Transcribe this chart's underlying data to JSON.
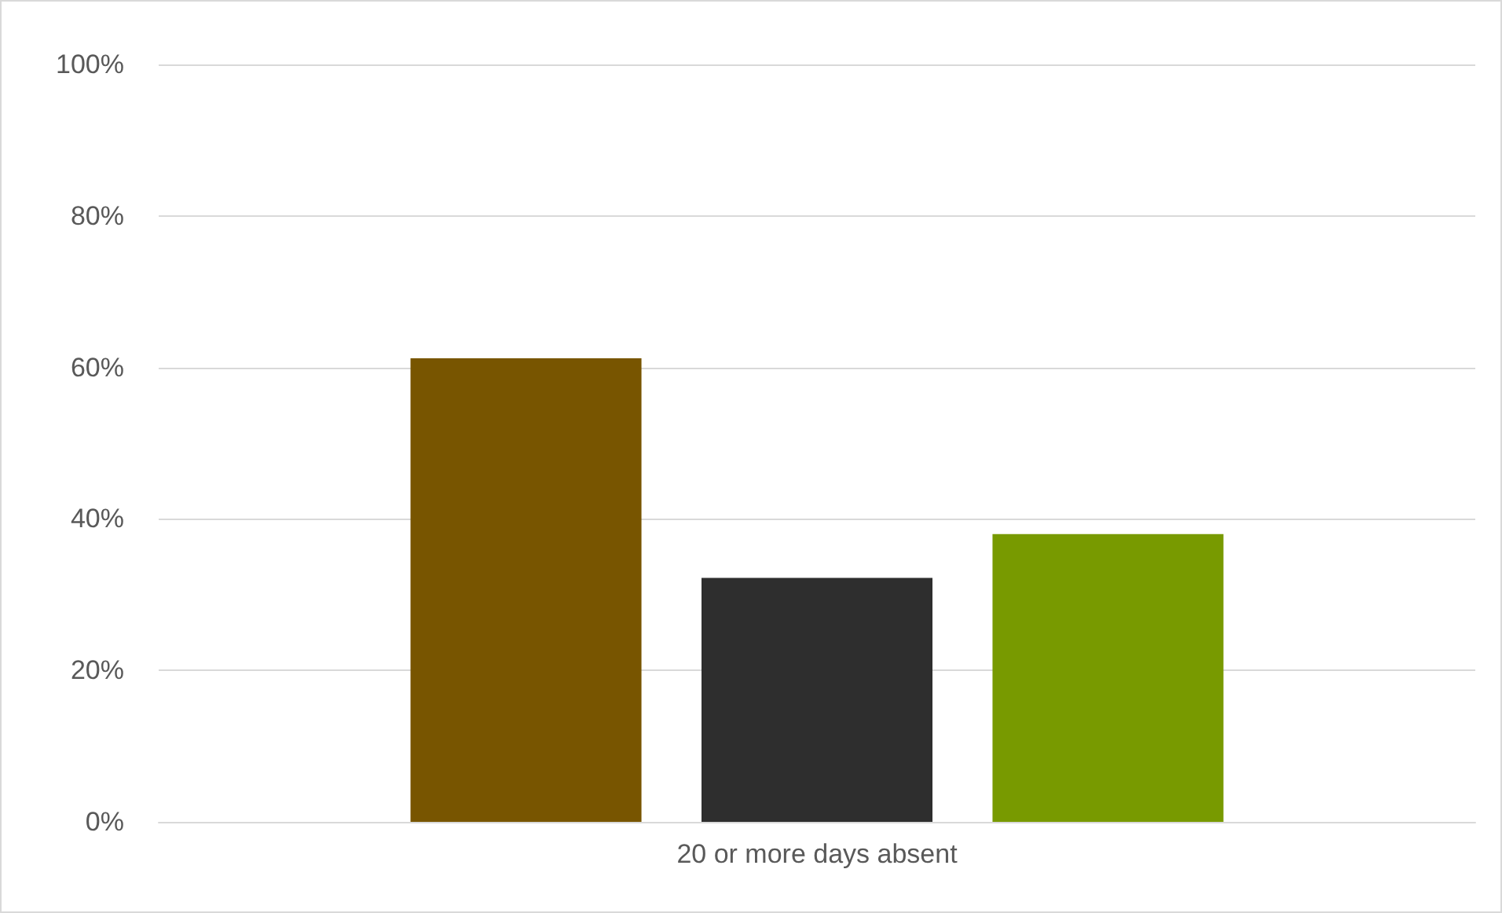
{
  "chart_data": {
    "type": "bar",
    "categories": [
      "20 or more days absent"
    ],
    "series": [
      {
        "color": "#785500",
        "values": [
          61.2
        ]
      },
      {
        "color": "#2e2e2e",
        "values": [
          32.2
        ]
      },
      {
        "color": "#789a00",
        "values": [
          38
        ]
      }
    ],
    "ylim": [
      0,
      100
    ],
    "yticks": [
      {
        "value": 0,
        "label": "0%"
      },
      {
        "value": 20,
        "label": "20%"
      },
      {
        "value": 40,
        "label": "40%"
      },
      {
        "value": 60,
        "label": "60%"
      },
      {
        "value": 80,
        "label": "80%"
      },
      {
        "value": 100,
        "label": "100%"
      }
    ],
    "grid": "y"
  }
}
